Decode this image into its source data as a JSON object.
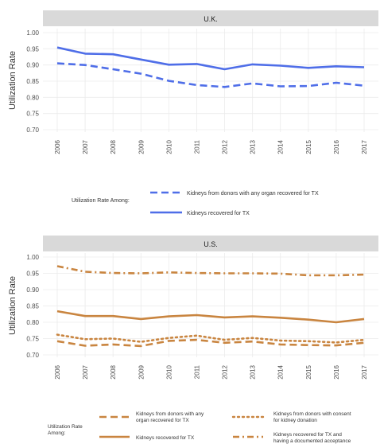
{
  "chart_data": [
    {
      "type": "line",
      "title": "U.K.",
      "ylabel": "Utilization Rate",
      "x": [
        2006,
        2007,
        2008,
        2009,
        2010,
        2011,
        2012,
        2013,
        2014,
        2015,
        2016,
        2017
      ],
      "ylim": [
        0.7,
        1.0
      ],
      "yticks": [
        "0.70",
        "0.75",
        "0.80",
        "0.85",
        "0.90",
        "0.95",
        "1.00"
      ],
      "grid": true,
      "legend_title": "Utilization Rate Among:",
      "legend_position": "bottom",
      "series": [
        {
          "name": "Kidneys from donors with any organ recovered for TX",
          "style": "dashed",
          "color": "#4f6ee8",
          "values": [
            0.905,
            0.9,
            0.887,
            0.873,
            0.851,
            0.838,
            0.832,
            0.843,
            0.834,
            0.835,
            0.845,
            0.836
          ]
        },
        {
          "name": "Kidneys recovered for TX",
          "style": "solid",
          "color": "#4f6ee8",
          "values": [
            0.954,
            0.935,
            0.933,
            0.917,
            0.901,
            0.903,
            0.887,
            0.902,
            0.898,
            0.891,
            0.896,
            0.893
          ]
        }
      ]
    },
    {
      "type": "line",
      "title": "U.S.",
      "ylabel": "Utilization Rate",
      "x": [
        2006,
        2007,
        2008,
        2009,
        2010,
        2011,
        2012,
        2013,
        2014,
        2015,
        2016,
        2017
      ],
      "ylim": [
        0.7,
        1.0
      ],
      "yticks": [
        "0.70",
        "0.75",
        "0.80",
        "0.85",
        "0.90",
        "0.95",
        "1.00"
      ],
      "grid": true,
      "legend_title": "Utilization Rate Among:",
      "legend_position": "bottom",
      "series": [
        {
          "name": "Kidneys from donors with any organ recovered for TX",
          "style": "dashed",
          "color": "#c98540",
          "values": [
            0.742,
            0.728,
            0.732,
            0.727,
            0.743,
            0.746,
            0.737,
            0.741,
            0.732,
            0.73,
            0.729,
            0.737
          ]
        },
        {
          "name": "Kidneys from donors with consent for kidney donation",
          "style": "dotted",
          "color": "#c98540",
          "values": [
            0.762,
            0.748,
            0.75,
            0.74,
            0.752,
            0.759,
            0.746,
            0.752,
            0.744,
            0.742,
            0.738,
            0.746
          ]
        },
        {
          "name": "Kidneys recovered for TX",
          "style": "solid",
          "color": "#c98540",
          "values": [
            0.834,
            0.819,
            0.819,
            0.81,
            0.818,
            0.822,
            0.815,
            0.818,
            0.814,
            0.808,
            0.8,
            0.81
          ]
        },
        {
          "name": "Kidneys recovered for TX and having a documented acceptance",
          "style": "dashdot",
          "color": "#c98540",
          "values": [
            0.972,
            0.955,
            0.951,
            0.95,
            0.953,
            0.951,
            0.95,
            0.95,
            0.949,
            0.944,
            0.944,
            0.946
          ]
        }
      ]
    }
  ]
}
